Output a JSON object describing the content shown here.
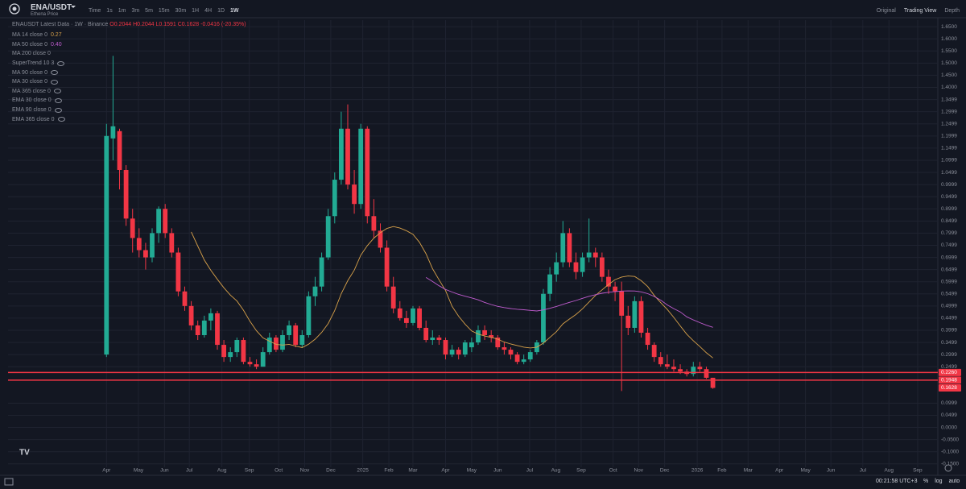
{
  "header": {
    "symbol": "ENA/USDT",
    "subtitle": "Ethena Price",
    "intervals": [
      "Time",
      "1s",
      "1m",
      "3m",
      "5m",
      "15m",
      "30m",
      "1H",
      "4H",
      "1D",
      "1W"
    ],
    "views": [
      "Original",
      "Trading View",
      "Depth"
    ]
  },
  "legend": {
    "title": "ENAUSDT Latest Data · 1W · Binance",
    "ohlc": "O0.2044 H0.2044 L0.1591 C0.1628 -0.0416 (-20.35%)",
    "indicators": [
      {
        "name": "MA 14 close 0",
        "value": "0.27",
        "color": "#d9a24a"
      },
      {
        "name": "MA 50 close 0",
        "value": "0.40",
        "color": "#c05ccf"
      },
      {
        "name": "MA 200 close 0"
      },
      {
        "name": "SuperTrend 10 3"
      },
      {
        "name": "MA 90 close 0"
      },
      {
        "name": "MA 30 close 0"
      },
      {
        "name": "MA 365 close 0"
      },
      {
        "name": "EMA 30 close 0"
      },
      {
        "name": "EMA 90 close 0"
      },
      {
        "name": "EMA 365 close 0"
      }
    ]
  },
  "footer": {
    "time": "00:21:58 UTC+3",
    "buttons": [
      "%",
      "log",
      "auto"
    ]
  },
  "chart_data": {
    "type": "candlestick",
    "up_color": "#22ab94",
    "down_color": "#f23645",
    "grid": true,
    "open": [
      0.3,
      1.19,
      1.22,
      1.06,
      0.86,
      0.78,
      0.73,
      0.7,
      0.8,
      0.9,
      0.8,
      0.72,
      0.56,
      0.5,
      0.42,
      0.38,
      0.44,
      0.47,
      0.34,
      0.29,
      0.31,
      0.36,
      0.27,
      0.26,
      0.25,
      0.31,
      0.37,
      0.32,
      0.38,
      0.42,
      0.34,
      0.38,
      0.54,
      0.58,
      0.7,
      0.87,
      1.02,
      1.23,
      1.0,
      0.92,
      1.23,
      0.87,
      0.81,
      0.74,
      0.58,
      0.49,
      0.45,
      0.43,
      0.49,
      0.41,
      0.36,
      0.37,
      0.36,
      0.3,
      0.32,
      0.3,
      0.33,
      0.35,
      0.4,
      0.38,
      0.37,
      0.33,
      0.32,
      0.3,
      0.27,
      0.28,
      0.31,
      0.35,
      0.55,
      0.63,
      0.68,
      0.8,
      0.68,
      0.64,
      0.7,
      0.72,
      0.7,
      0.62,
      0.58,
      0.56,
      0.46,
      0.41,
      0.52,
      0.39,
      0.34,
      0.29,
      0.26,
      0.25,
      0.24,
      0.23,
      0.22,
      0.25,
      0.24,
      0.2044
    ],
    "high": [
      1.25,
      1.53,
      1.23,
      1.08,
      0.9,
      0.82,
      0.76,
      0.82,
      0.91,
      0.92,
      0.82,
      0.74,
      0.58,
      0.52,
      0.44,
      0.46,
      0.49,
      0.48,
      0.36,
      0.33,
      0.37,
      0.37,
      0.29,
      0.28,
      0.33,
      0.39,
      0.38,
      0.4,
      0.44,
      0.43,
      0.4,
      0.56,
      0.62,
      0.72,
      0.9,
      1.05,
      1.3,
      1.33,
      1.06,
      1.25,
      1.24,
      0.94,
      0.84,
      0.77,
      0.62,
      0.52,
      0.48,
      0.5,
      0.5,
      0.44,
      0.4,
      0.38,
      0.37,
      0.34,
      0.33,
      0.36,
      0.37,
      0.42,
      0.42,
      0.4,
      0.38,
      0.35,
      0.33,
      0.31,
      0.3,
      0.32,
      0.36,
      0.57,
      0.66,
      0.72,
      0.85,
      0.82,
      0.72,
      0.72,
      0.86,
      0.74,
      0.72,
      0.65,
      0.6,
      0.6,
      0.5,
      0.54,
      0.54,
      0.41,
      0.35,
      0.31,
      0.3,
      0.28,
      0.26,
      0.24,
      0.27,
      0.27,
      0.25,
      0.2044
    ],
    "low": [
      0.29,
      1.1,
      0.98,
      0.83,
      0.72,
      0.7,
      0.65,
      0.68,
      0.76,
      0.78,
      0.7,
      0.54,
      0.48,
      0.4,
      0.36,
      0.37,
      0.4,
      0.32,
      0.27,
      0.27,
      0.29,
      0.26,
      0.25,
      0.24,
      0.25,
      0.3,
      0.31,
      0.31,
      0.36,
      0.33,
      0.33,
      0.37,
      0.5,
      0.56,
      0.69,
      0.84,
      1.0,
      0.98,
      0.88,
      0.9,
      0.84,
      0.78,
      0.72,
      0.56,
      0.47,
      0.44,
      0.41,
      0.42,
      0.4,
      0.35,
      0.34,
      0.34,
      0.28,
      0.29,
      0.28,
      0.29,
      0.31,
      0.34,
      0.36,
      0.35,
      0.32,
      0.3,
      0.28,
      0.26,
      0.26,
      0.27,
      0.3,
      0.34,
      0.52,
      0.6,
      0.66,
      0.66,
      0.61,
      0.62,
      0.68,
      0.66,
      0.6,
      0.55,
      0.52,
      0.15,
      0.38,
      0.39,
      0.37,
      0.32,
      0.27,
      0.25,
      0.24,
      0.23,
      0.22,
      0.21,
      0.21,
      0.23,
      0.2,
      0.1591
    ],
    "close": [
      1.2,
      1.24,
      1.06,
      0.86,
      0.78,
      0.73,
      0.7,
      0.8,
      0.9,
      0.8,
      0.72,
      0.56,
      0.5,
      0.42,
      0.38,
      0.44,
      0.47,
      0.34,
      0.29,
      0.31,
      0.36,
      0.27,
      0.26,
      0.25,
      0.31,
      0.37,
      0.32,
      0.38,
      0.42,
      0.34,
      0.38,
      0.54,
      0.58,
      0.7,
      0.87,
      1.02,
      1.23,
      1.0,
      0.92,
      1.23,
      0.87,
      0.81,
      0.74,
      0.58,
      0.49,
      0.45,
      0.43,
      0.49,
      0.41,
      0.36,
      0.37,
      0.36,
      0.3,
      0.32,
      0.3,
      0.35,
      0.35,
      0.4,
      0.38,
      0.37,
      0.33,
      0.32,
      0.3,
      0.27,
      0.28,
      0.31,
      0.35,
      0.55,
      0.63,
      0.68,
      0.8,
      0.68,
      0.64,
      0.7,
      0.72,
      0.7,
      0.62,
      0.58,
      0.56,
      0.46,
      0.41,
      0.52,
      0.39,
      0.34,
      0.29,
      0.26,
      0.25,
      0.24,
      0.23,
      0.22,
      0.25,
      0.24,
      0.2044,
      0.1628
    ],
    "moving_averages": [
      {
        "period": 14,
        "color": "#d9a24a"
      },
      {
        "period": 50,
        "color": "#c05ccf"
      }
    ],
    "price_lines": [
      {
        "value": 0.226,
        "label": "0.2260",
        "line": true
      },
      {
        "value": 0.1948,
        "label": "0.1948",
        "line": true
      },
      {
        "value": 0.1628,
        "label": "0.1628",
        "line": false
      }
    ],
    "xlim": [
      -15.1,
      127.5
    ],
    "ylim": [
      -0.164,
      1.677
    ],
    "xticks": [
      {
        "value": 0,
        "label": "Apr"
      },
      {
        "value": 4.9,
        "label": "May"
      },
      {
        "value": 8.9,
        "label": "Jun"
      },
      {
        "value": 12.7,
        "label": "Jul"
      },
      {
        "value": 17.7,
        "label": "Aug"
      },
      {
        "value": 21.9,
        "label": "Sep"
      },
      {
        "value": 26.4,
        "label": "Oct"
      },
      {
        "value": 30.4,
        "label": "Nov"
      },
      {
        "value": 34.4,
        "label": "Dec"
      },
      {
        "value": 39.3,
        "label": "2025"
      },
      {
        "value": 43.3,
        "label": "Feb"
      },
      {
        "value": 47,
        "label": "Mar"
      },
      {
        "value": 52,
        "label": "Apr"
      },
      {
        "value": 56,
        "label": "May"
      },
      {
        "value": 60,
        "label": "Jun"
      },
      {
        "value": 64.9,
        "label": "Jul"
      },
      {
        "value": 68.9,
        "label": "Aug"
      },
      {
        "value": 72.8,
        "label": "Sep"
      },
      {
        "value": 77.7,
        "label": "Oct"
      },
      {
        "value": 81.6,
        "label": "Nov"
      },
      {
        "value": 85.6,
        "label": "Dec"
      },
      {
        "value": 90.6,
        "label": "2026"
      },
      {
        "value": 94.4,
        "label": "Feb"
      },
      {
        "value": 98.4,
        "label": "Mar"
      },
      {
        "value": 103.2,
        "label": "Apr"
      },
      {
        "value": 107.2,
        "label": "May"
      },
      {
        "value": 111.1,
        "label": "Jun"
      },
      {
        "value": 116,
        "label": "Jul"
      },
      {
        "value": 120,
        "label": "Aug"
      },
      {
        "value": 124.4,
        "label": "Sep"
      }
    ],
    "yticks": [
      {
        "value": 1.65,
        "label": "1.6500"
      },
      {
        "value": 1.6,
        "label": "1.6000"
      },
      {
        "value": 1.55,
        "label": "1.5500"
      },
      {
        "value": 1.5,
        "label": "1.5000"
      },
      {
        "value": 1.45,
        "label": "1.4500"
      },
      {
        "value": 1.4,
        "label": "1.4000"
      },
      {
        "value": 1.3499,
        "label": "1.3499"
      },
      {
        "value": 1.2999,
        "label": "1.2999"
      },
      {
        "value": 1.2499,
        "label": "1.2499"
      },
      {
        "value": 1.1999,
        "label": "1.1999"
      },
      {
        "value": 1.1499,
        "label": "1.1499"
      },
      {
        "value": 1.0999,
        "label": "1.0999"
      },
      {
        "value": 1.0499,
        "label": "1.0499"
      },
      {
        "value": 0.9999,
        "label": "0.9999"
      },
      {
        "value": 0.9499,
        "label": "0.9499"
      },
      {
        "value": 0.8999,
        "label": "0.8999"
      },
      {
        "value": 0.8499,
        "label": "0.8499"
      },
      {
        "value": 0.7999,
        "label": "0.7999"
      },
      {
        "value": 0.7499,
        "label": "0.7499"
      },
      {
        "value": 0.6999,
        "label": "0.6999"
      },
      {
        "value": 0.6499,
        "label": "0.6499"
      },
      {
        "value": 0.5999,
        "label": "0.5999"
      },
      {
        "value": 0.5499,
        "label": "0.5499"
      },
      {
        "value": 0.4999,
        "label": "0.4999"
      },
      {
        "value": 0.4499,
        "label": "0.4499"
      },
      {
        "value": 0.3999,
        "label": "0.3999"
      },
      {
        "value": 0.3499,
        "label": "0.3499"
      },
      {
        "value": 0.2999,
        "label": "0.2999"
      },
      {
        "value": 0.2499,
        "label": "0.2499"
      },
      {
        "value": 0.0999,
        "label": "0.0999"
      },
      {
        "value": 0.0499,
        "label": "0.0499"
      },
      {
        "value": 0,
        "label": "0.0000"
      },
      {
        "value": -0.05,
        "label": "-0.0500"
      },
      {
        "value": -0.1,
        "label": "-0.1000"
      },
      {
        "value": -0.15,
        "label": "-0.1500"
      }
    ]
  }
}
